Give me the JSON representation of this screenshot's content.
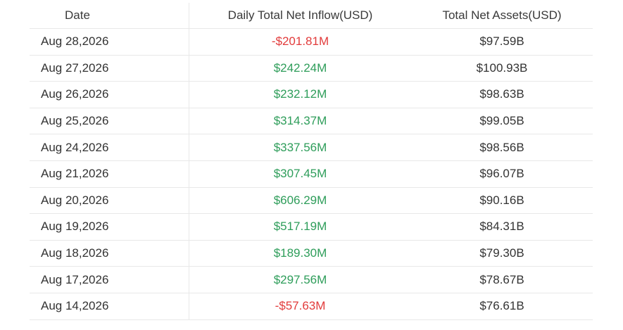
{
  "table": {
    "headers": {
      "date": "Date",
      "inflow": "Daily Total Net Inflow(USD)",
      "assets": "Total Net Assets(USD)"
    },
    "rows": [
      {
        "date": "Aug 28,2026",
        "inflow": "-$201.81M",
        "assets": "$97.59B",
        "inflow_sign": "neg"
      },
      {
        "date": "Aug 27,2026",
        "inflow": "$242.24M",
        "assets": "$100.93B",
        "inflow_sign": "pos"
      },
      {
        "date": "Aug 26,2026",
        "inflow": "$232.12M",
        "assets": "$98.63B",
        "inflow_sign": "pos"
      },
      {
        "date": "Aug 25,2026",
        "inflow": "$314.37M",
        "assets": "$99.05B",
        "inflow_sign": "pos"
      },
      {
        "date": "Aug 24,2026",
        "inflow": "$337.56M",
        "assets": "$98.56B",
        "inflow_sign": "pos"
      },
      {
        "date": "Aug 21,2026",
        "inflow": "$307.45M",
        "assets": "$96.07B",
        "inflow_sign": "pos"
      },
      {
        "date": "Aug 20,2026",
        "inflow": "$606.29M",
        "assets": "$90.16B",
        "inflow_sign": "pos"
      },
      {
        "date": "Aug 19,2026",
        "inflow": "$517.19M",
        "assets": "$84.31B",
        "inflow_sign": "pos"
      },
      {
        "date": "Aug 18,2026",
        "inflow": "$189.30M",
        "assets": "$79.30B",
        "inflow_sign": "pos"
      },
      {
        "date": "Aug 17,2026",
        "inflow": "$297.56M",
        "assets": "$78.67B",
        "inflow_sign": "pos"
      },
      {
        "date": "Aug 14,2026",
        "inflow": "-$57.63M",
        "assets": "$76.61B",
        "inflow_sign": "neg"
      }
    ]
  },
  "colors": {
    "positive": "#2e9d5a",
    "negative": "#e23b3b",
    "text": "#333333",
    "divider": "#e8e8e8"
  }
}
